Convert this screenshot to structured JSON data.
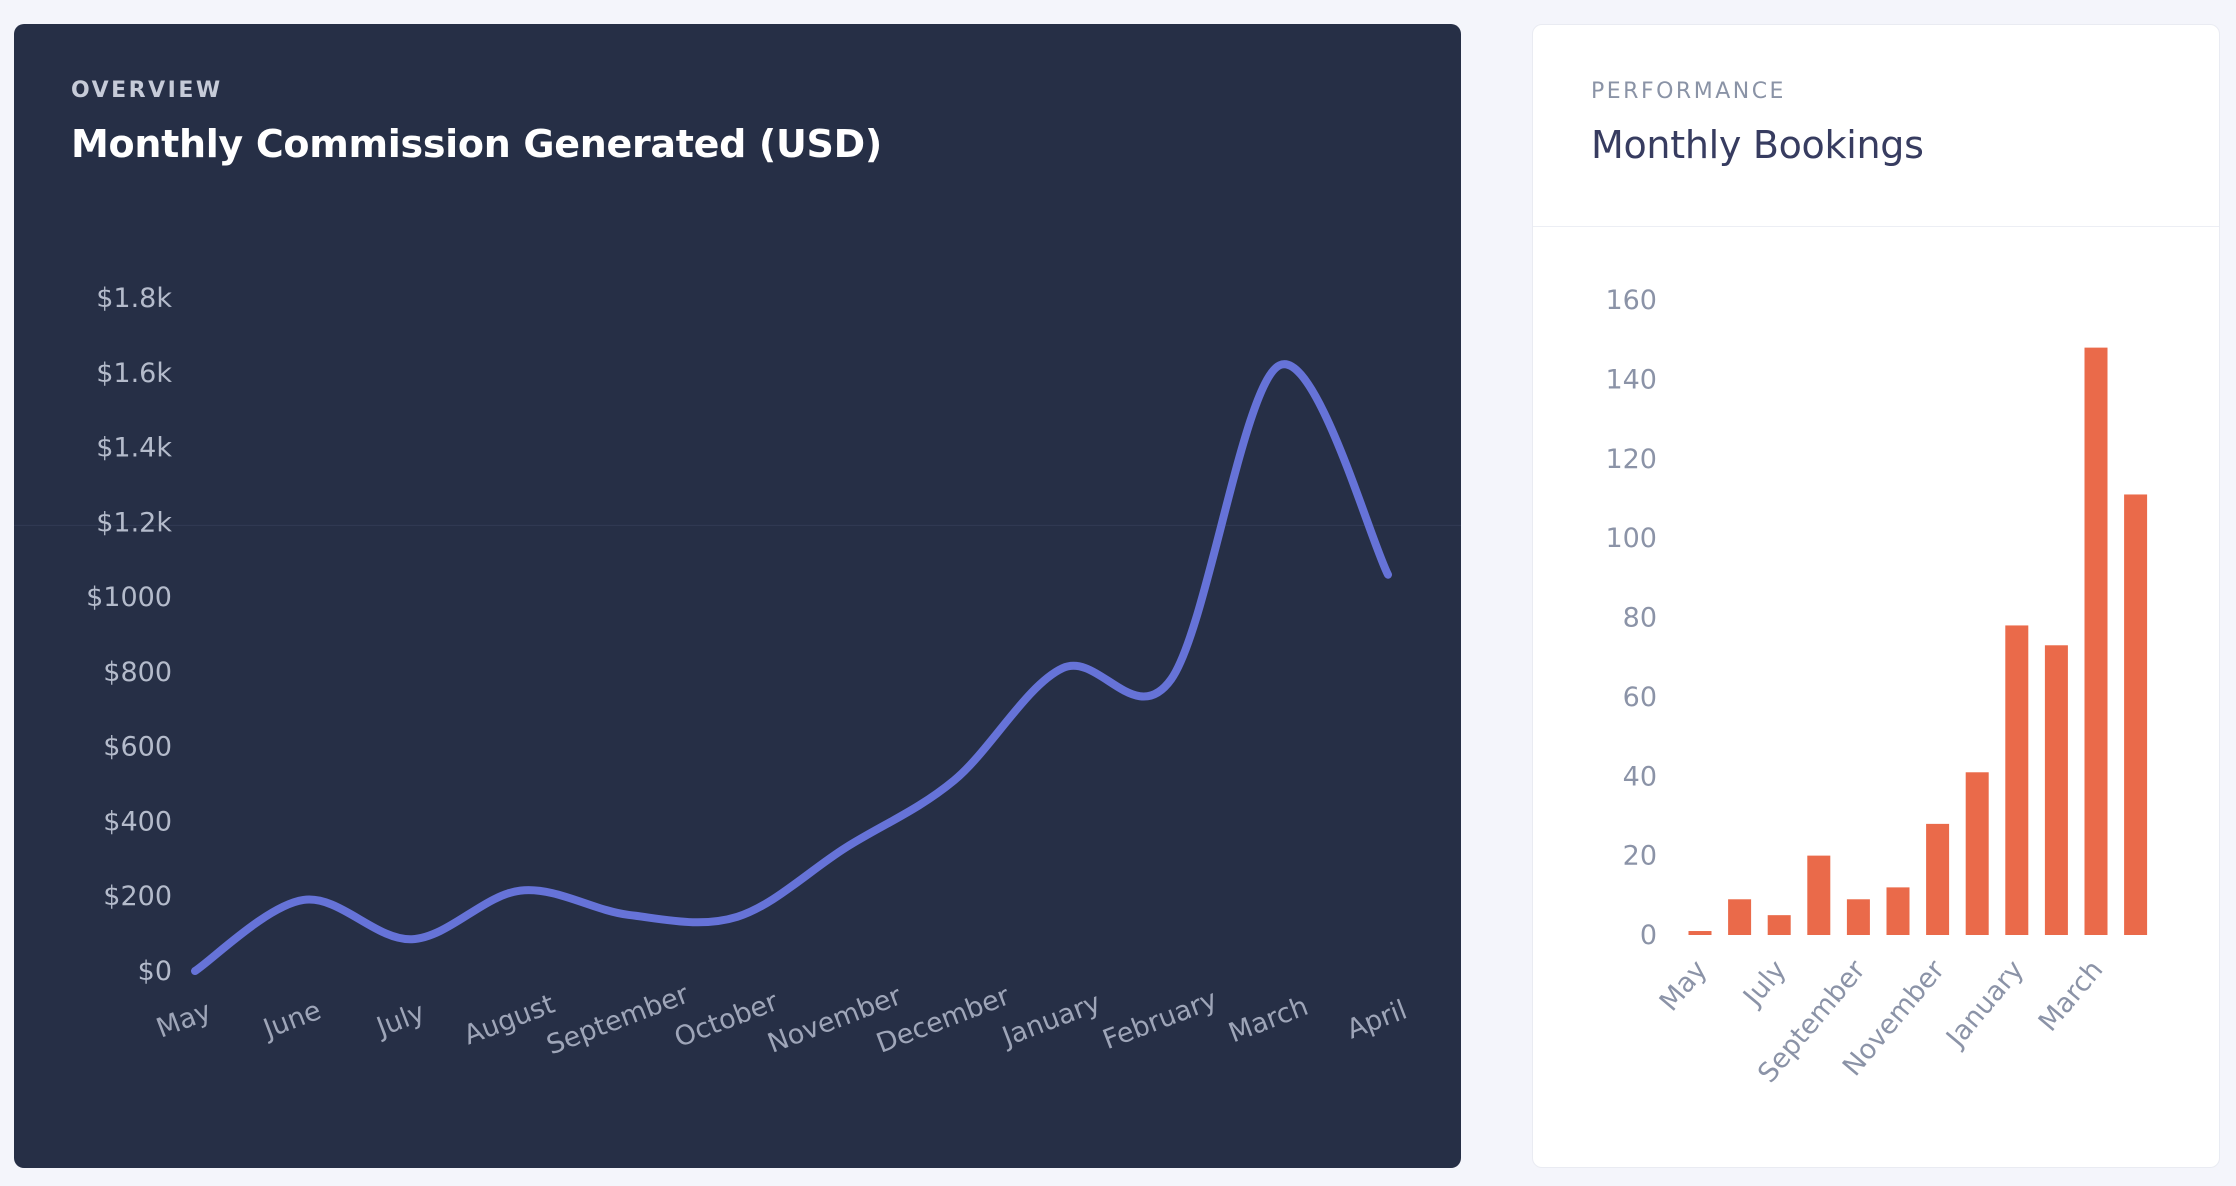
{
  "left_card": {
    "overline": "OVERVIEW",
    "title": "Monthly Commission Generated (USD)"
  },
  "right_card": {
    "overline": "PERFORMANCE",
    "title": "Monthly Bookings"
  },
  "colors": {
    "dark_card_bg": "#262f46",
    "line": "#6673d8",
    "bar": "#ea6a4a",
    "page_bg": "#f4f5fb"
  },
  "chart_data": [
    {
      "type": "line",
      "title": "Monthly Commission Generated (USD)",
      "categories": [
        "May",
        "June",
        "July",
        "August",
        "September",
        "October",
        "November",
        "December",
        "January",
        "February",
        "March",
        "April"
      ],
      "values": [
        0,
        190,
        85,
        215,
        150,
        145,
        330,
        510,
        810,
        780,
        1620,
        1060
      ],
      "ylim": [
        0,
        1800
      ],
      "ytick_values": [
        0,
        200,
        400,
        600,
        800,
        1000,
        1200,
        1400,
        1600,
        1800
      ],
      "ytick_labels": [
        "$0",
        "$200",
        "$400",
        "$600",
        "$800",
        "$1000",
        "$1.2k",
        "$1.4k",
        "$1.6k",
        "$1.8k"
      ],
      "xlabel": "",
      "ylabel": "",
      "smooth": true,
      "grid": false,
      "legend": "none"
    },
    {
      "type": "bar",
      "title": "Monthly Bookings",
      "categories": [
        "May",
        "June",
        "July",
        "August",
        "September",
        "October",
        "November",
        "December",
        "January",
        "February",
        "March",
        "April"
      ],
      "shown_category_labels": [
        "May",
        "July",
        "September",
        "November",
        "January",
        "March"
      ],
      "values": [
        1,
        9,
        5,
        20,
        9,
        12,
        28,
        41,
        78,
        73,
        148,
        111
      ],
      "ylim": [
        0,
        160
      ],
      "ytick_values": [
        0,
        20,
        40,
        60,
        80,
        100,
        120,
        140,
        160
      ],
      "ytick_labels": [
        "0",
        "20",
        "40",
        "60",
        "80",
        "100",
        "120",
        "140",
        "160"
      ],
      "xlabel": "",
      "ylabel": "",
      "grid": false,
      "legend": "none"
    }
  ]
}
